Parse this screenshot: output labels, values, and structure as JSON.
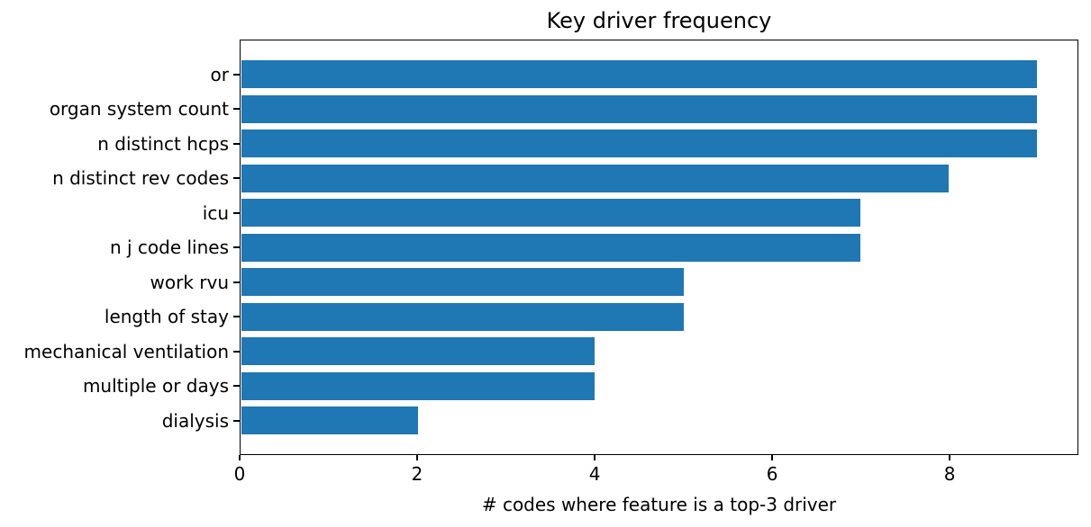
{
  "chart_data": {
    "type": "bar",
    "orientation": "horizontal",
    "title": "Key driver frequency",
    "xlabel": "# codes where feature is a top-3 driver",
    "ylabel": "",
    "categories": [
      "or",
      "organ system count",
      "n distinct hcps",
      "n distinct rev codes",
      "icu",
      "n j code lines",
      "work rvu",
      "length of stay",
      "mechanical ventilation",
      "multiple or days",
      "dialysis"
    ],
    "values": [
      9,
      9,
      9,
      8,
      7,
      7,
      5,
      5,
      4,
      4,
      2
    ],
    "xlim": [
      0,
      9.45
    ],
    "xticks": [
      0,
      2,
      4,
      6,
      8
    ],
    "bar_color": "#1f77b4",
    "axis_color": "#000000",
    "grid": false,
    "legend_position": "none"
  }
}
